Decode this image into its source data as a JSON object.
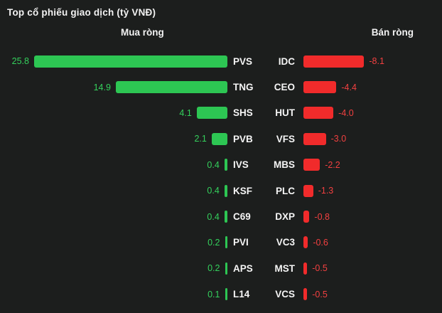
{
  "title": "Top cổ phiếu giao dịch (tỷ VNĐ)",
  "headers": {
    "buy": "Mua ròng",
    "sell": "Bán ròng"
  },
  "colors": {
    "background": "#1c1e1d",
    "text": "#f2f2f2",
    "buy_bar": "#2dc653",
    "buy_text": "#34d05c",
    "sell_bar": "#f12b2b",
    "sell_text": "#f24040"
  },
  "chart_data": {
    "type": "bar",
    "subtype": "diverging-tornado",
    "title": "Top cổ phiếu giao dịch (tỷ VNĐ)",
    "unit": "tỷ VNĐ",
    "legend_position": "column-headers",
    "grid": false,
    "max_abs_value": 25.8,
    "series": [
      {
        "name": "Mua ròng",
        "color": "#2dc653",
        "data": [
          {
            "ticker": "PVS",
            "value": 25.8
          },
          {
            "ticker": "TNG",
            "value": 14.9
          },
          {
            "ticker": "SHS",
            "value": 4.1
          },
          {
            "ticker": "PVB",
            "value": 2.1
          },
          {
            "ticker": "IVS",
            "value": 0.4
          },
          {
            "ticker": "KSF",
            "value": 0.4
          },
          {
            "ticker": "C69",
            "value": 0.4
          },
          {
            "ticker": "PVI",
            "value": 0.2
          },
          {
            "ticker": "APS",
            "value": 0.2
          },
          {
            "ticker": "L14",
            "value": 0.1
          }
        ]
      },
      {
        "name": "Bán ròng",
        "color": "#f12b2b",
        "data": [
          {
            "ticker": "IDC",
            "value": -8.1
          },
          {
            "ticker": "CEO",
            "value": -4.4
          },
          {
            "ticker": "HUT",
            "value": -4.0
          },
          {
            "ticker": "VFS",
            "value": -3.0
          },
          {
            "ticker": "MBS",
            "value": -2.2
          },
          {
            "ticker": "PLC",
            "value": -1.3
          },
          {
            "ticker": "DXP",
            "value": -0.8
          },
          {
            "ticker": "VC3",
            "value": -0.6
          },
          {
            "ticker": "MST",
            "value": -0.5
          },
          {
            "ticker": "VCS",
            "value": -0.5
          }
        ]
      }
    ]
  }
}
